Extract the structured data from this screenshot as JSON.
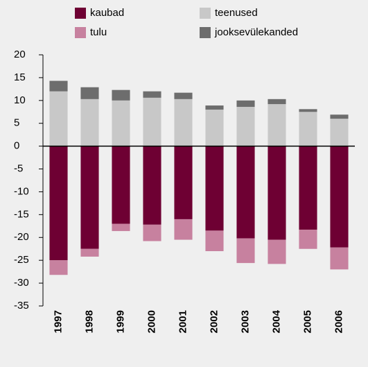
{
  "chart_data": {
    "type": "bar",
    "stacked": true,
    "categories": [
      "1997",
      "1998",
      "1999",
      "2000",
      "2001",
      "2002",
      "2003",
      "2004",
      "2005",
      "2006"
    ],
    "series": [
      {
        "name": "kaubad",
        "color": "#6e0033",
        "values": [
          -25,
          -22.5,
          -17,
          -17.2,
          -16,
          -18.5,
          -20.2,
          -20.5,
          -18.3,
          -22.2
        ]
      },
      {
        "name": "tulu",
        "color": "#c7819f",
        "values": [
          -3.2,
          -1.7,
          -1.6,
          -3.6,
          -4.5,
          -4.5,
          -5.4,
          -5.3,
          -4.2,
          -4.8
        ]
      },
      {
        "name": "teenused",
        "color": "#c8c8c8",
        "values": [
          12,
          10.3,
          10,
          10.6,
          10.3,
          8,
          8.6,
          9.2,
          7.5,
          6
        ]
      },
      {
        "name": "jooksevülekanded",
        "color": "#6d6d6d",
        "values": [
          2.3,
          2.6,
          2.3,
          1.4,
          1.4,
          0.9,
          1.4,
          1.1,
          0.6,
          0.9
        ]
      }
    ],
    "ylim": [
      -35,
      20
    ],
    "yticks": [
      20,
      15,
      10,
      5,
      0,
      -5,
      -10,
      -15,
      -20,
      -25,
      -30,
      -35
    ],
    "grid": false
  }
}
